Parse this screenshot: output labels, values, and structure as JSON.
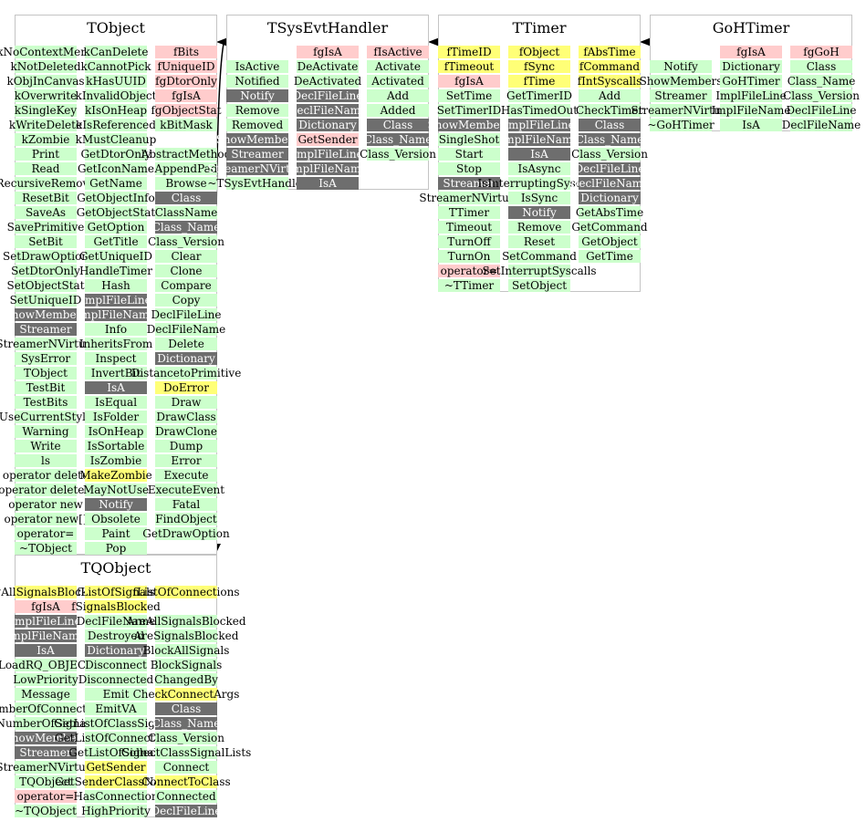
{
  "classes": [
    {
      "name": "TObject",
      "columns": [
        [
          "kNoContextMenu:pub",
          "kNotDeleted:pub",
          "kObjInCanvas:pub",
          "kOverwrite:pub",
          "kSingleKey:pub",
          "kWriteDelete:pub",
          "kZombie:pub",
          "Print:pub",
          "Read:pub",
          "RecursiveRemove:pub",
          "ResetBit:pub",
          "SaveAs:pub",
          "SavePrimitive:pub",
          "SetBit:pub",
          "SetDrawOption:pub",
          "SetDtorOnly:pub",
          "SetObjectStat:pub",
          "SetUniqueID:pub",
          "ShowMembers:prot",
          "Streamer:prot",
          "StreamerNVirtual:pub",
          "SysError:pub",
          "TObject:pub",
          "TestBit:pub",
          "TestBits:pub",
          "UseCurrentStyle:pub",
          "Warning:pub",
          "Write:pub",
          "ls:pub",
          "operator delete:pub",
          "operator delete[]:pub",
          "operator new:pub",
          "operator new[]:pub",
          "operator=:pub",
          "~TObject:pub"
        ],
        [
          "kCanDelete:pub",
          "kCannotPick:pub",
          "kHasUUID:pub",
          "kInvalidObject:pub",
          "kIsOnHeap:pub",
          "kIsReferenced:pub",
          "kMustCleanup:pub",
          "GetDtorOnly:pub",
          "GetIconName:pub",
          "GetName:pub",
          "GetObjectInfo:pub",
          "GetObjectStat:pub",
          "GetOption:pub",
          "GetTitle:pub",
          "GetUniqueID:pub",
          "HandleTimer:pub",
          "Hash:pub",
          "ImplFileLine:prot",
          "ImplFileName:prot",
          "Info:pub",
          "InheritsFrom:pub",
          "Inspect:pub",
          "InvertBit:pub",
          "IsA:prot",
          "IsEqual:pub",
          "IsFolder:pub",
          "IsOnHeap:pub",
          "IsSortable:pub",
          "IsZombie:pub",
          "MakeZombie:hl",
          "MayNotUse:pub",
          "Notify:prot",
          "Obsolete:pub",
          "Paint:pub",
          "Pop:pub"
        ],
        [
          "fBits:priv",
          "fUniqueID:priv",
          "fgDtorOnly:priv",
          "fgIsA:priv",
          "fgObjectStat:priv",
          "kBitMask:pub",
          "",
          "AbstractMethod:pub",
          "AppendPad:pub",
          "Browse:pub",
          "Class:prot",
          "ClassName:pub",
          "Class_Name:prot",
          "Class_Version:pub",
          "Clear:pub",
          "Clone:pub",
          "Compare:pub",
          "Copy:pub",
          "DeclFileLine:pub",
          "DeclFileName:pub",
          "Delete:pub",
          "Dictionary:prot",
          "DistancetoPrimitive:pub",
          "DoError:hl",
          "Draw:pub",
          "DrawClass:pub",
          "DrawClone:pub",
          "Dump:pub",
          "Error:pub",
          "Execute:pub",
          "ExecuteEvent:pub",
          "Fatal:pub",
          "FindObject:pub",
          "GetDrawOption:pub"
        ]
      ]
    },
    {
      "name": "TSysEvtHandler",
      "columns": [
        [
          "",
          "IsActive:pub",
          "Notified:pub",
          "Notify:prot",
          "Remove:pub",
          "Removed:pub",
          "ShowMembers:prot",
          "Streamer:prot",
          "StreamerNVirtual:prot",
          "~TSysEvtHandler:pub"
        ],
        [
          "fgIsA:priv",
          "DeActivate:pub",
          "DeActivated:pub",
          "DeclFileLine:prot",
          "DeclFileName:prot",
          "Dictionary:prot",
          "GetSender:priv",
          "ImplFileLine:prot",
          "ImplFileName:prot",
          "IsA:prot"
        ],
        [
          "fIsActive:priv",
          "Activate:pub",
          "Activated:pub",
          "Add:pub",
          "Added:pub",
          "Class:prot",
          "Class_Name:prot",
          "Class_Version:pub"
        ]
      ]
    },
    {
      "name": "TTimer",
      "columns": [
        [
          "fTimeID:hl",
          "fTimeout:hl",
          "fgIsA:priv",
          "SetTime:pub",
          "SetTimerID:pub",
          "ShowMembers:prot",
          "SingleShot:pub",
          "Start:pub",
          "Stop:pub",
          "Streamer:prot",
          "StreamerNVirtual:pub",
          "TTimer:pub",
          "Timeout:pub",
          "TurnOff:pub",
          "TurnOn:pub",
          "operator=:priv",
          "~TTimer:pub"
        ],
        [
          "fObject:hl",
          "fSync:hl",
          "fTime:hl",
          "GetTimerID:pub",
          "HasTimedOut:pub",
          "ImplFileLine:prot",
          "ImplFileName:prot",
          "IsA:prot",
          "IsAsync:pub",
          "IsInterruptingSyscalls:pub",
          "IsSync:pub",
          "Notify:prot",
          "Remove:pub",
          "Reset:pub",
          "SetCommand:pub",
          "SetInterruptSyscalls:pub",
          "SetObject:pub"
        ],
        [
          "fAbsTime:hl",
          "fCommand:hl",
          "fIntSyscalls:hl",
          "Add:pub",
          "CheckTimer:pub",
          "Class:prot",
          "Class_Name:prot",
          "Class_Version:pub",
          "DeclFileLine:prot",
          "DeclFileName:prot",
          "Dictionary:prot",
          "GetAbsTime:pub",
          "GetCommand:pub",
          "GetObject:pub",
          "GetTime:pub"
        ]
      ]
    },
    {
      "name": "GoHTimer",
      "columns": [
        [
          "",
          "Notify:pub",
          "ShowMembers:pub",
          "Streamer:pub",
          "StreamerNVirtual:pub",
          "~GoHTimer:pub"
        ],
        [
          "fgIsA:priv",
          "Dictionary:pub",
          "GoHTimer:pub",
          "ImplFileLine:pub",
          "ImplFileName:pub",
          "IsA:pub"
        ],
        [
          "fgGoH:priv",
          "Class:pub",
          "Class_Name:pub",
          "Class_Version:pub",
          "DeclFileLine:pub",
          "DeclFileName:pub"
        ]
      ]
    },
    {
      "name": "TQObject",
      "columns": [
        [
          "fgAllSignalsBlocked:hl",
          "fgIsA:priv",
          "ImplFileLine:prot",
          "ImplFileName:prot",
          "IsA:prot",
          "LoadRQ_OBJECT:pub",
          "LowPriority:pub",
          "Message:pub",
          "NumberOfConnections:pub",
          "NumberOfSignals:pub",
          "ShowMembers:prot",
          "Streamer:prot",
          "StreamerNVirtual:pub",
          "TQObject:pub",
          "operator=:priv",
          "~TQObject:pub"
        ],
        [
          "fListOfSignals:hl",
          "fSignalsBlocked:hl",
          "DeclFileName:pub",
          "Destroyed:pub",
          "Dictionary:prot",
          "Disconnect:pub",
          "Disconnected:pub",
          "Emit:pub",
          "EmitVA:pub",
          "GetListOfClassSignals:pub",
          "GetListOfConnections:pub",
          "GetListOfSignals:pub",
          "GetSender:hl",
          "GetSenderClassName:hl",
          "HasConnection:pub",
          "HighPriority:pub"
        ],
        [
          "fListOfConnections:hl",
          "",
          "AreAllSignalsBlocked:pub",
          "AreSignalsBlocked:pub",
          "BlockAllSignals:pub",
          "BlockSignals:pub",
          "ChangedBy:pub",
          "CheckConnectArgs:hl",
          "Class:prot",
          "Class_Name:prot",
          "Class_Version:pub",
          "CollectClassSignalLists:pub",
          "Connect:pub",
          "ConnectToClass:hl",
          "Connected:pub",
          "DeclFileLine:prot"
        ]
      ]
    }
  ]
}
